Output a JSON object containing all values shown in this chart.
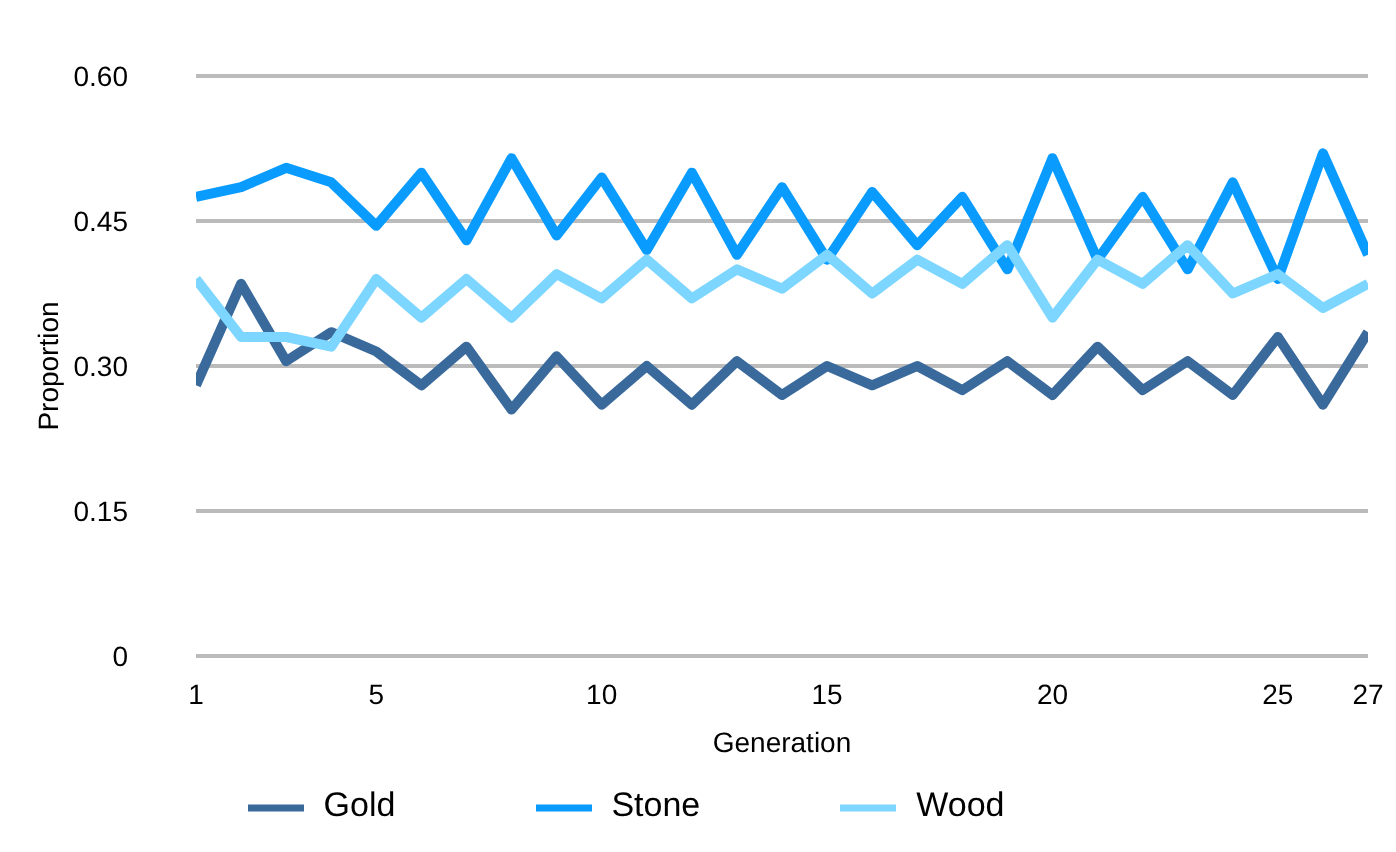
{
  "chart_data": {
    "type": "line",
    "xlabel": "Generation",
    "ylabel": "Proportion",
    "x": [
      1,
      2,
      3,
      4,
      5,
      6,
      7,
      8,
      9,
      10,
      11,
      12,
      13,
      14,
      15,
      16,
      17,
      18,
      19,
      20,
      21,
      22,
      23,
      24,
      25,
      26,
      27
    ],
    "xlim": [
      1,
      27
    ],
    "xticks": [
      1,
      5,
      10,
      15,
      20,
      25,
      27
    ],
    "ylim": [
      0,
      0.6
    ],
    "yticks": [
      0,
      {
        "value": 0.15,
        "label": "0.15"
      },
      {
        "value": 0.3,
        "label": "0.30"
      },
      {
        "value": 0.45,
        "label": "0.45"
      },
      {
        "value": 0.6,
        "label": "0.60"
      }
    ],
    "grid": "y",
    "legend": "bottom",
    "marker": "none",
    "line_style": "solid",
    "series": [
      {
        "name": "Gold",
        "color": "#3a6a9c",
        "values": [
          0.28,
          0.385,
          0.305,
          0.335,
          0.315,
          0.28,
          0.32,
          0.255,
          0.31,
          0.26,
          0.3,
          0.26,
          0.305,
          0.27,
          0.3,
          0.28,
          0.3,
          0.275,
          0.305,
          0.27,
          0.32,
          0.275,
          0.305,
          0.27,
          0.33,
          0.26,
          0.335
        ]
      },
      {
        "name": "Stone",
        "color": "#0a9bff",
        "values": [
          0.475,
          0.485,
          0.505,
          0.49,
          0.445,
          0.5,
          0.43,
          0.515,
          0.435,
          0.495,
          0.42,
          0.5,
          0.415,
          0.485,
          0.41,
          0.48,
          0.425,
          0.475,
          0.4,
          0.515,
          0.41,
          0.475,
          0.4,
          0.49,
          0.39,
          0.52,
          0.415
        ]
      },
      {
        "name": "Wood",
        "color": "#7dd6ff",
        "values": [
          0.39,
          0.33,
          0.33,
          0.32,
          0.39,
          0.35,
          0.39,
          0.35,
          0.395,
          0.37,
          0.41,
          0.37,
          0.4,
          0.38,
          0.415,
          0.375,
          0.41,
          0.385,
          0.425,
          0.35,
          0.41,
          0.385,
          0.425,
          0.375,
          0.395,
          0.36,
          0.385
        ]
      }
    ]
  }
}
